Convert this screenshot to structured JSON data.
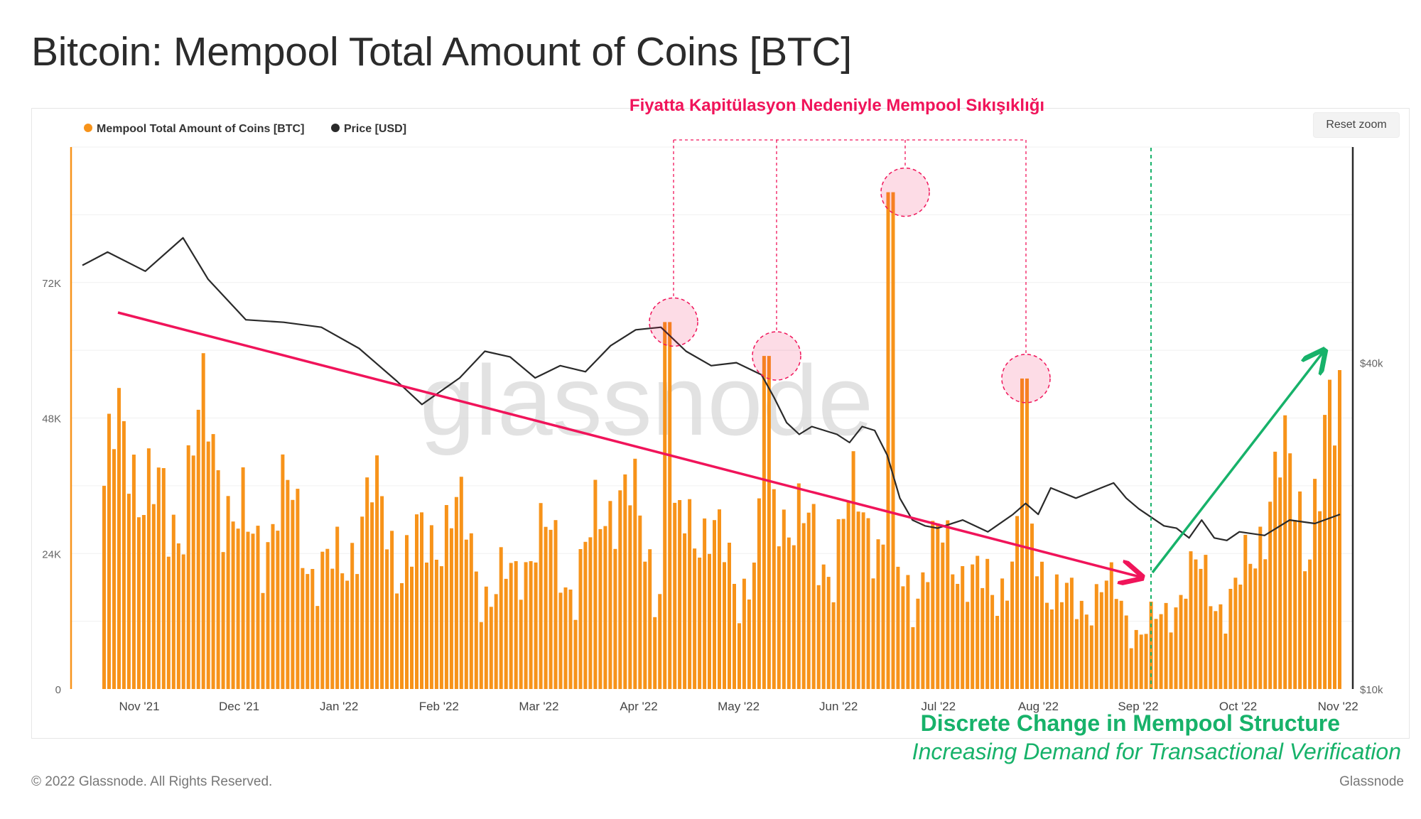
{
  "header": {
    "title": "Bitcoin: Mempool Total Amount of Coins [BTC]"
  },
  "controls": {
    "reset_zoom": "Reset zoom"
  },
  "footer": {
    "copyright": "© 2022 Glassnode. All Rights Reserved.",
    "brand": "Glassnode"
  },
  "annotations": {
    "capitulation_label": "Fiyatta Kapitülasyon Nedeniyle Mempool Sıkışıklığı",
    "structure_change": "Discrete Change in Mempool Structure",
    "demand_note": "Increasing Demand for Transactional Verification"
  },
  "colors": {
    "bars": "#f7931a",
    "price": "#2a2a2a",
    "downtrend": "#f0145a",
    "uptrend": "#17b26a",
    "circles": "#f0145a",
    "watermark": "#d9d9d9"
  },
  "chart_data": {
    "type": "bar",
    "title": "Bitcoin: Mempool Total Amount of Coins [BTC]",
    "watermark": "glassnode",
    "legend": [
      "Mempool Total Amount of Coins [BTC]",
      "Price [USD]"
    ],
    "legend_position": "top-left",
    "x_tick_labels": [
      "Nov '21",
      "Dec '21",
      "Jan '22",
      "Feb '22",
      "Mar '22",
      "Apr '22",
      "May '22",
      "Jun '22",
      "Jul '22",
      "Aug '22",
      "Sep '22",
      "Oct '22",
      "Nov '22"
    ],
    "y_left": {
      "ticks": [
        0,
        24000,
        48000,
        72000
      ],
      "tick_labels": [
        "0",
        "24K",
        "48K",
        "72K"
      ],
      "range": [
        0,
        96000
      ]
    },
    "y_right": {
      "scale": "log",
      "ticks": [
        10000,
        40000
      ],
      "tick_labels": [
        "$10k",
        "$40k"
      ],
      "range": [
        10000,
        100000
      ]
    },
    "monthly_mean_mempool_btc": [
      {
        "month": "Nov '21",
        "value": 36000
      },
      {
        "month": "Dec '21",
        "value": 38000
      },
      {
        "month": "Jan '22",
        "value": 24000
      },
      {
        "month": "Feb '22",
        "value": 29000
      },
      {
        "month": "Mar '22",
        "value": 20000
      },
      {
        "month": "Apr '22",
        "value": 30000
      },
      {
        "month": "May '22",
        "value": 24000
      },
      {
        "month": "Jun '22",
        "value": 30000
      },
      {
        "month": "Jul '22",
        "value": 21000
      },
      {
        "month": "Aug '22",
        "value": 22000
      },
      {
        "month": "Sep '22",
        "value": 12000
      },
      {
        "month": "Oct '22",
        "value": 20000
      },
      {
        "month": "Nov '22",
        "value": 48000
      }
    ],
    "price_points_usd": [
      {
        "x": 0.0,
        "v": 60500
      },
      {
        "x": 0.02,
        "v": 64000
      },
      {
        "x": 0.05,
        "v": 59000
      },
      {
        "x": 0.08,
        "v": 68000
      },
      {
        "x": 0.1,
        "v": 57000
      },
      {
        "x": 0.13,
        "v": 48000
      },
      {
        "x": 0.16,
        "v": 47500
      },
      {
        "x": 0.19,
        "v": 46500
      },
      {
        "x": 0.22,
        "v": 42500
      },
      {
        "x": 0.25,
        "v": 37000
      },
      {
        "x": 0.27,
        "v": 33500
      },
      {
        "x": 0.3,
        "v": 37500
      },
      {
        "x": 0.32,
        "v": 42000
      },
      {
        "x": 0.34,
        "v": 41000
      },
      {
        "x": 0.36,
        "v": 37500
      },
      {
        "x": 0.38,
        "v": 39500
      },
      {
        "x": 0.4,
        "v": 38500
      },
      {
        "x": 0.42,
        "v": 43000
      },
      {
        "x": 0.44,
        "v": 46000
      },
      {
        "x": 0.46,
        "v": 46500
      },
      {
        "x": 0.48,
        "v": 42000
      },
      {
        "x": 0.5,
        "v": 39500
      },
      {
        "x": 0.52,
        "v": 40000
      },
      {
        "x": 0.54,
        "v": 38000
      },
      {
        "x": 0.55,
        "v": 34500
      },
      {
        "x": 0.56,
        "v": 31000
      },
      {
        "x": 0.57,
        "v": 29500
      },
      {
        "x": 0.58,
        "v": 30500
      },
      {
        "x": 0.6,
        "v": 29500
      },
      {
        "x": 0.61,
        "v": 28500
      },
      {
        "x": 0.62,
        "v": 30500
      },
      {
        "x": 0.63,
        "v": 30000
      },
      {
        "x": 0.64,
        "v": 27000
      },
      {
        "x": 0.65,
        "v": 22500
      },
      {
        "x": 0.66,
        "v": 20500
      },
      {
        "x": 0.67,
        "v": 20000
      },
      {
        "x": 0.68,
        "v": 19800
      },
      {
        "x": 0.7,
        "v": 20500
      },
      {
        "x": 0.72,
        "v": 19500
      },
      {
        "x": 0.74,
        "v": 21000
      },
      {
        "x": 0.75,
        "v": 22000
      },
      {
        "x": 0.76,
        "v": 21000
      },
      {
        "x": 0.77,
        "v": 23500
      },
      {
        "x": 0.79,
        "v": 22500
      },
      {
        "x": 0.81,
        "v": 23500
      },
      {
        "x": 0.82,
        "v": 24000
      },
      {
        "x": 0.83,
        "v": 22500
      },
      {
        "x": 0.84,
        "v": 21500
      },
      {
        "x": 0.86,
        "v": 20000
      },
      {
        "x": 0.87,
        "v": 19800
      },
      {
        "x": 0.88,
        "v": 19000
      },
      {
        "x": 0.89,
        "v": 20500
      },
      {
        "x": 0.9,
        "v": 19000
      },
      {
        "x": 0.91,
        "v": 18800
      },
      {
        "x": 0.92,
        "v": 19500
      },
      {
        "x": 0.94,
        "v": 19200
      },
      {
        "x": 0.96,
        "v": 20500
      },
      {
        "x": 0.98,
        "v": 20200
      },
      {
        "x": 1.0,
        "v": 21000
      }
    ],
    "highlighted_peaks": [
      {
        "date": "Apr '22",
        "value": 65000
      },
      {
        "date": "May '22",
        "value": 59000
      },
      {
        "date": "Jun '22",
        "value": 88000
      },
      {
        "date": "Jul '22",
        "value": 55000
      }
    ],
    "trendlines": [
      {
        "name": "downtrend",
        "direction": "down"
      },
      {
        "name": "uptrend",
        "direction": "up"
      }
    ],
    "grid": true
  }
}
